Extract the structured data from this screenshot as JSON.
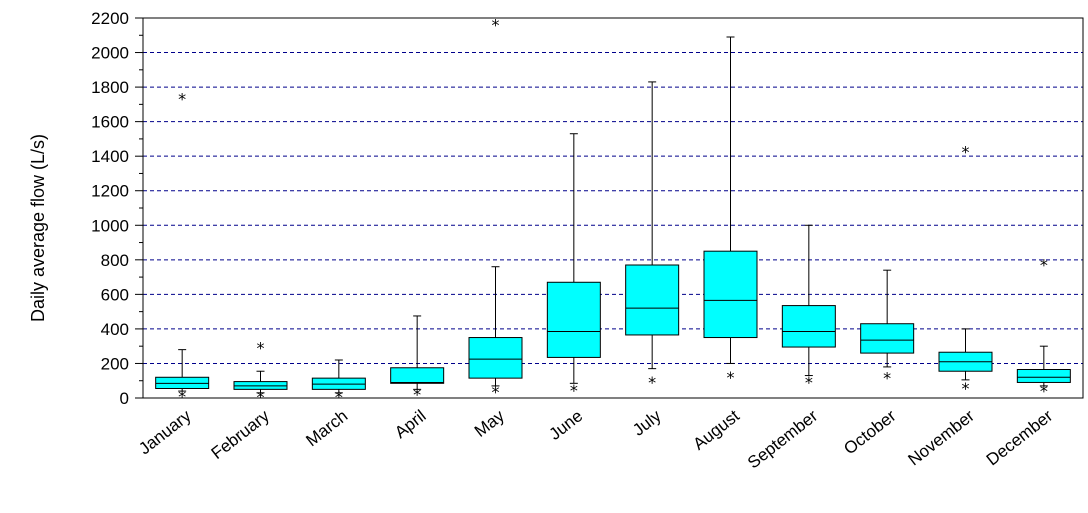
{
  "chart_data": {
    "type": "boxplot",
    "title": "",
    "xlabel": "",
    "ylabel": "Daily average flow (L/s)",
    "ylim": [
      0,
      2200
    ],
    "yticks": [
      0,
      200,
      400,
      600,
      800,
      1000,
      1200,
      1400,
      1600,
      1800,
      2000,
      2200
    ],
    "grid": "horizontal-dashed",
    "box_color": "#00ffff",
    "categories": [
      "January",
      "February",
      "March",
      "April",
      "May",
      "June",
      "July",
      "August",
      "September",
      "October",
      "November",
      "December"
    ],
    "series": [
      {
        "category": "January",
        "whisker_low": 40,
        "q1": 55,
        "median": 85,
        "q3": 120,
        "whisker_high": 280,
        "outliers": [
          30,
          1750
        ]
      },
      {
        "category": "February",
        "whisker_low": 30,
        "q1": 50,
        "median": 70,
        "q3": 95,
        "whisker_high": 155,
        "outliers": [
          25,
          310
        ]
      },
      {
        "category": "March",
        "whisker_low": 30,
        "q1": 50,
        "median": 80,
        "q3": 115,
        "whisker_high": 220,
        "outliers": [
          25
        ]
      },
      {
        "category": "April",
        "whisker_low": 50,
        "q1": 85,
        "median": 90,
        "q3": 175,
        "whisker_high": 475,
        "outliers": [
          40
        ]
      },
      {
        "category": "May",
        "whisker_low": 70,
        "q1": 115,
        "median": 225,
        "q3": 350,
        "whisker_high": 760,
        "outliers": [
          55,
          2180
        ]
      },
      {
        "category": "June",
        "whisker_low": 85,
        "q1": 235,
        "median": 385,
        "q3": 670,
        "whisker_high": 1530,
        "outliers": [
          65
        ]
      },
      {
        "category": "July",
        "whisker_low": 170,
        "q1": 365,
        "median": 520,
        "q3": 770,
        "whisker_high": 1830,
        "outliers": [
          110
        ]
      },
      {
        "category": "August",
        "whisker_low": 200,
        "q1": 350,
        "median": 565,
        "q3": 850,
        "whisker_high": 2090,
        "outliers": [
          140
        ]
      },
      {
        "category": "September",
        "whisker_low": 130,
        "q1": 295,
        "median": 385,
        "q3": 535,
        "whisker_high": 1000,
        "outliers": [
          110
        ]
      },
      {
        "category": "October",
        "whisker_low": 180,
        "q1": 260,
        "median": 335,
        "q3": 430,
        "whisker_high": 740,
        "outliers": [
          135
        ]
      },
      {
        "category": "November",
        "whisker_low": 105,
        "q1": 155,
        "median": 210,
        "q3": 265,
        "whisker_high": 400,
        "outliers": [
          75,
          1445
        ]
      },
      {
        "category": "December",
        "whisker_low": 70,
        "q1": 90,
        "median": 120,
        "q3": 165,
        "whisker_high": 300,
        "outliers": [
          60,
          790
        ]
      }
    ]
  }
}
